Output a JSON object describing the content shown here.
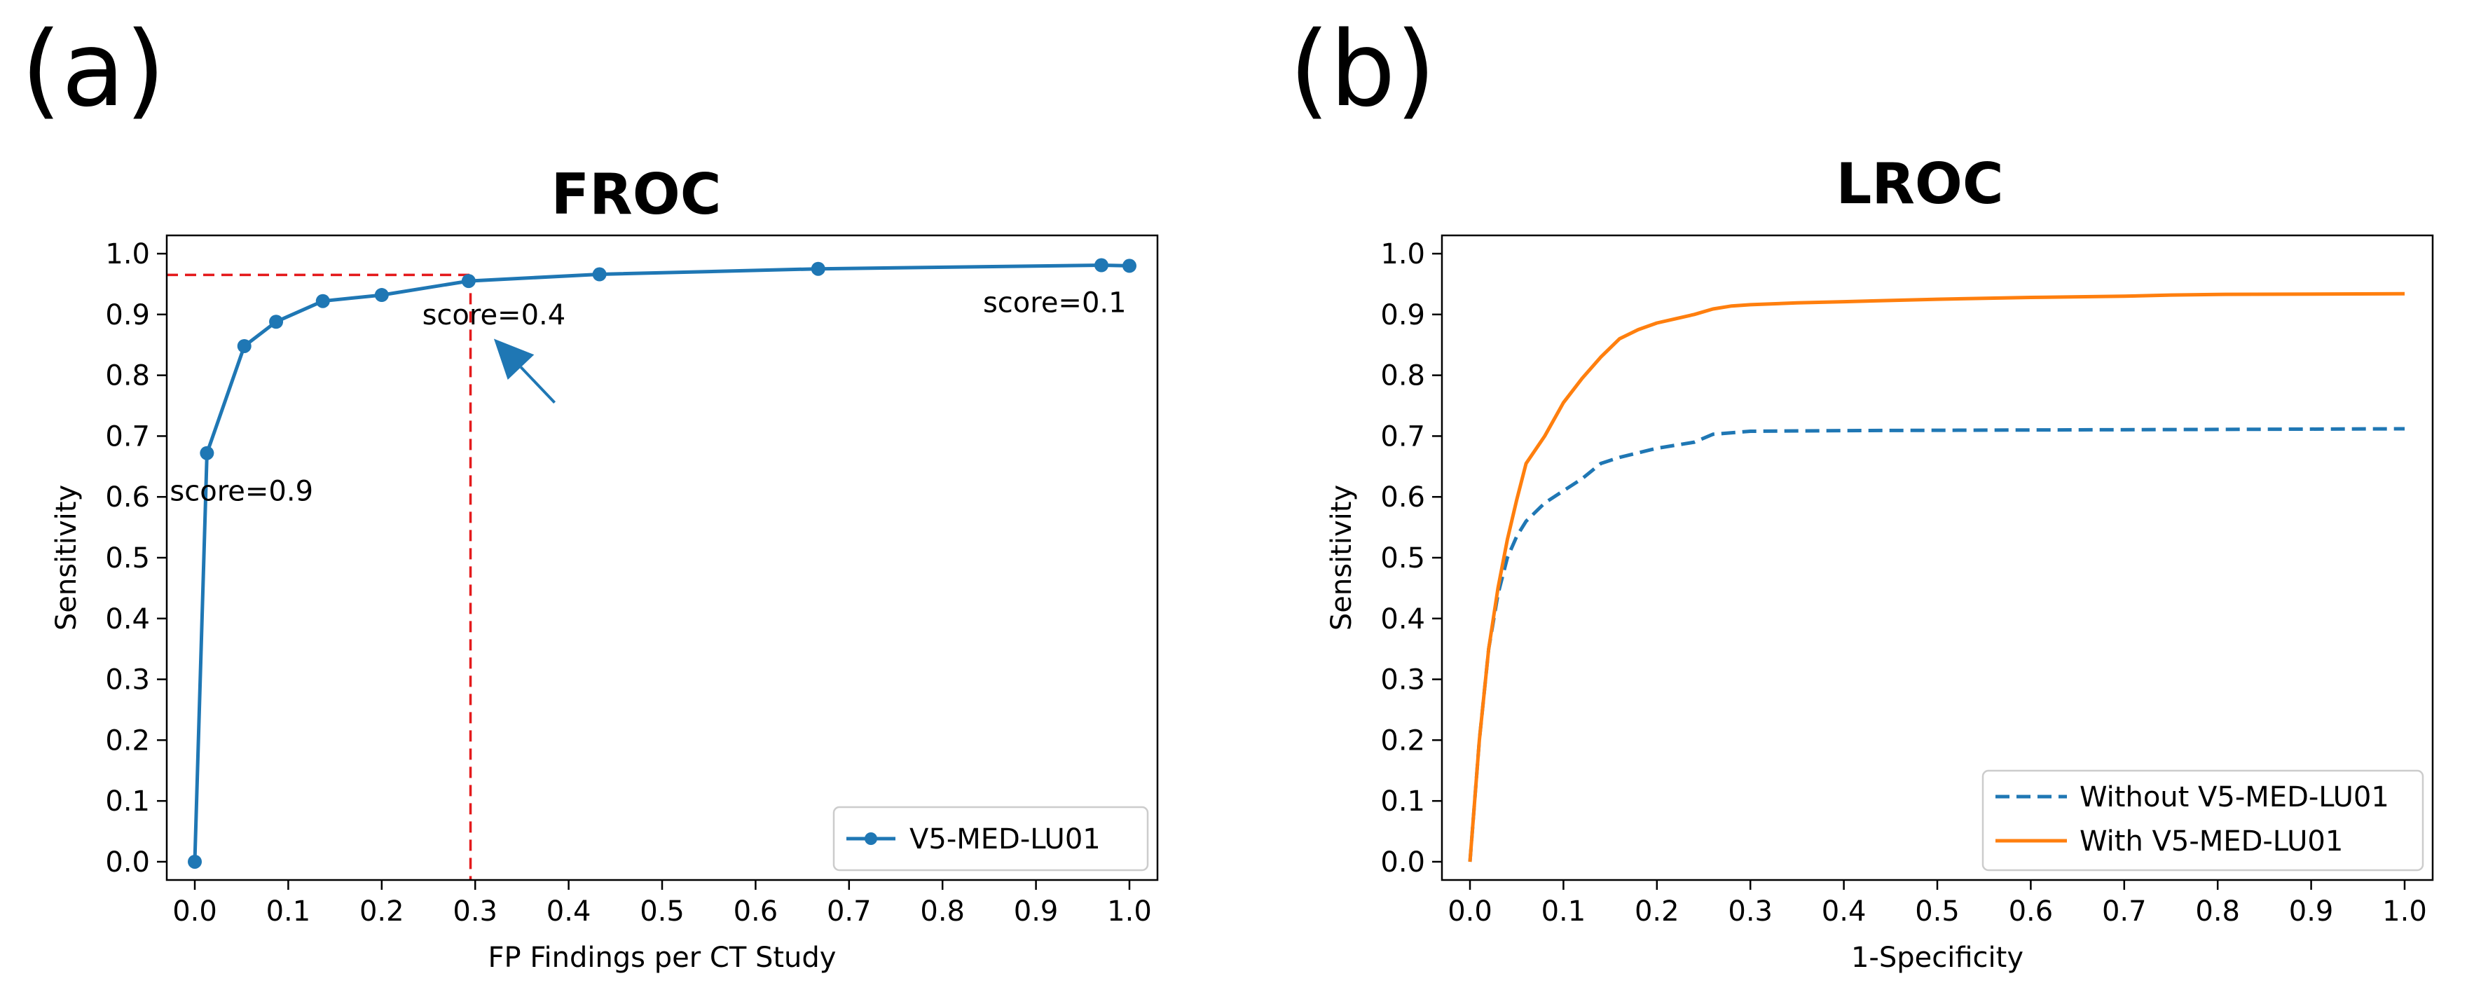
{
  "panel_labels": [
    "(a)",
    "(b)"
  ],
  "chart_data": [
    {
      "type": "line",
      "title": "FROC",
      "xlabel": "FP Findings per CT Study",
      "ylabel": "Sensitivity",
      "xlim": [
        -0.03,
        1.03
      ],
      "ylim": [
        -0.03,
        1.03
      ],
      "xticks": [
        0.0,
        0.1,
        0.2,
        0.3,
        0.4,
        0.5,
        0.6,
        0.7,
        0.8,
        0.9,
        1.0
      ],
      "xtick_labels": [
        "0.0",
        "0.1",
        "0.2",
        "0.3",
        "0.4",
        "0.5",
        "0.6",
        "0.7",
        "0.8",
        "0.9",
        "1.0"
      ],
      "yticks": [
        0.0,
        0.1,
        0.2,
        0.3,
        0.4,
        0.5,
        0.6,
        0.7,
        0.8,
        0.9,
        1.0
      ],
      "ytick_labels": [
        "0.0",
        "0.1",
        "0.2",
        "0.3",
        "0.4",
        "0.5",
        "0.6",
        "0.7",
        "0.8",
        "0.9",
        "1.0"
      ],
      "legend_position": "bottom-right",
      "series": [
        {
          "name": "V5-MED-LU01",
          "color": "#1f77b4",
          "style": "solid",
          "markers": true,
          "x": [
            0.0,
            0.013,
            0.053,
            0.087,
            0.137,
            0.2,
            0.293,
            0.433,
            0.667,
            0.97,
            1.0
          ],
          "y": [
            0.0,
            0.672,
            0.848,
            0.888,
            0.922,
            0.932,
            0.955,
            0.966,
            0.975,
            0.981,
            0.98
          ]
        }
      ],
      "reference_lines": {
        "color": "#e41a1c",
        "horizontal_y": 0.965,
        "vertical_x": 0.295
      },
      "annotations": [
        {
          "text": "score=0.9",
          "x": 0.05,
          "y": 0.61
        },
        {
          "text": "score=0.4",
          "x": 0.32,
          "y": 0.9
        },
        {
          "text": "score=0.1",
          "x": 0.92,
          "y": 0.92
        }
      ],
      "arrow": {
        "color": "#1f77b4",
        "from": [
          0.385,
          0.755
        ],
        "to": [
          0.32,
          0.86
        ]
      }
    },
    {
      "type": "line",
      "title": "LROC",
      "xlabel": "1-Specificity",
      "ylabel": "Sensitivity",
      "xlim": [
        -0.03,
        1.03
      ],
      "ylim": [
        -0.03,
        1.03
      ],
      "xticks": [
        0.0,
        0.1,
        0.2,
        0.3,
        0.4,
        0.5,
        0.6,
        0.7,
        0.8,
        0.9,
        1.0
      ],
      "xtick_labels": [
        "0.0",
        "0.1",
        "0.2",
        "0.3",
        "0.4",
        "0.5",
        "0.6",
        "0.7",
        "0.8",
        "0.9",
        "1.0"
      ],
      "yticks": [
        0.0,
        0.1,
        0.2,
        0.3,
        0.4,
        0.5,
        0.6,
        0.7,
        0.8,
        0.9,
        1.0
      ],
      "ytick_labels": [
        "0.0",
        "0.1",
        "0.2",
        "0.3",
        "0.4",
        "0.5",
        "0.6",
        "0.7",
        "0.8",
        "0.9",
        "1.0"
      ],
      "legend_position": "bottom-right",
      "series": [
        {
          "name": "Without V5-MED-LU01",
          "color": "#1f77b4",
          "style": "dashed",
          "markers": false,
          "x": [
            0.0,
            0.01,
            0.02,
            0.03,
            0.04,
            0.05,
            0.06,
            0.08,
            0.1,
            0.12,
            0.14,
            0.16,
            0.2,
            0.24,
            0.26,
            0.3,
            0.4,
            0.6,
            0.8,
            1.0
          ],
          "y": [
            0.0,
            0.2,
            0.35,
            0.44,
            0.5,
            0.535,
            0.56,
            0.59,
            0.61,
            0.63,
            0.655,
            0.665,
            0.68,
            0.69,
            0.703,
            0.708,
            0.709,
            0.71,
            0.711,
            0.712
          ]
        },
        {
          "name": "With V5-MED-LU01",
          "color": "#ff7f0e",
          "style": "solid",
          "markers": false,
          "x": [
            0.0,
            0.01,
            0.02,
            0.03,
            0.04,
            0.05,
            0.06,
            0.08,
            0.1,
            0.12,
            0.14,
            0.16,
            0.18,
            0.2,
            0.22,
            0.24,
            0.26,
            0.28,
            0.3,
            0.35,
            0.4,
            0.5,
            0.6,
            0.7,
            0.75,
            0.8,
            1.0
          ],
          "y": [
            0.0,
            0.2,
            0.35,
            0.45,
            0.53,
            0.595,
            0.655,
            0.7,
            0.755,
            0.795,
            0.83,
            0.86,
            0.875,
            0.886,
            0.893,
            0.9,
            0.909,
            0.914,
            0.916,
            0.919,
            0.921,
            0.925,
            0.928,
            0.93,
            0.932,
            0.933,
            0.934
          ]
        }
      ]
    }
  ]
}
